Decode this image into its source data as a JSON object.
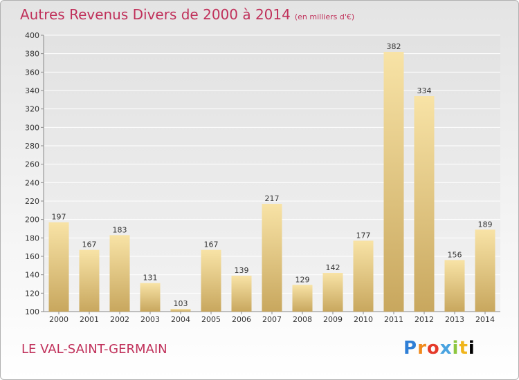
{
  "chart_data": {
    "type": "bar",
    "title": "Autres Revenus Divers de 2000 à 2014",
    "subtitle": "(en milliers d'€)",
    "categories": [
      "2000",
      "2001",
      "2002",
      "2003",
      "2004",
      "2005",
      "2006",
      "2007",
      "2008",
      "2009",
      "2010",
      "2011",
      "2012",
      "2013",
      "2014"
    ],
    "values": [
      197,
      167,
      183,
      131,
      103,
      167,
      139,
      217,
      129,
      142,
      177,
      382,
      334,
      156,
      189
    ],
    "ylim": [
      100,
      400
    ],
    "yticks": [
      100,
      120,
      140,
      160,
      180,
      200,
      220,
      240,
      260,
      280,
      300,
      320,
      340,
      360,
      380,
      400
    ],
    "grid": true,
    "colors": {
      "bar_light": "#f8e3a6",
      "bar_dark": "#c8a75e",
      "title": "#c0305a",
      "grid": "#ffffff"
    }
  },
  "footer": {
    "commune": "LE VAL-SAINT-GERMAIN",
    "logo": "Proxiti"
  }
}
